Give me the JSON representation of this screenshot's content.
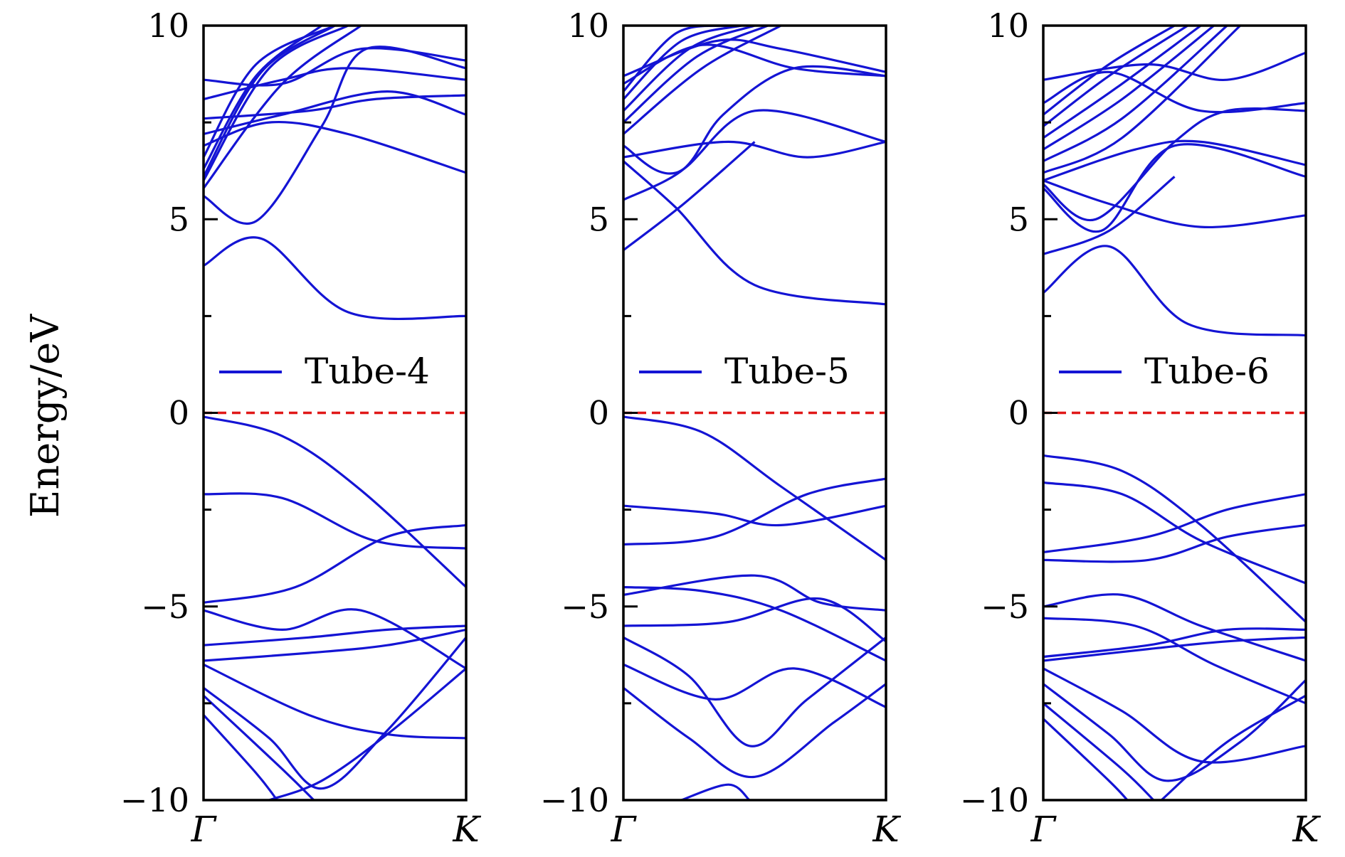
{
  "figure": {
    "ylabel": "Energy/eV"
  },
  "chart_data": [
    {
      "type": "line",
      "ylabel": "Energy/eV",
      "ylim": [
        -10,
        10
      ],
      "yticks": [
        10,
        5,
        0,
        -5,
        -10
      ],
      "ytick_labels": [
        "10",
        "5",
        "0",
        "−5",
        "−10"
      ],
      "xtick_labels": [
        "Γ",
        "K"
      ],
      "xlim": [
        0,
        1
      ],
      "fermi_level": 0,
      "legend": "Tube-4",
      "legend_position": "center",
      "colors": {
        "bands": "#1414d4",
        "fermi": "#e01818"
      },
      "bands": [
        [
          [
            0,
            8.6
          ],
          [
            0.3,
            8.5
          ],
          [
            0.6,
            9.4
          ],
          [
            1,
            9.1
          ]
        ],
        [
          [
            0,
            8.1
          ],
          [
            0.3,
            8.6
          ],
          [
            0.55,
            8.9
          ],
          [
            1,
            8.6
          ]
        ],
        [
          [
            0,
            7.6
          ],
          [
            0.4,
            7.8
          ],
          [
            0.65,
            8.1
          ],
          [
            1,
            8.2
          ]
        ],
        [
          [
            0,
            7.2
          ],
          [
            0.3,
            7.7
          ],
          [
            0.7,
            8.3
          ],
          [
            1,
            7.7
          ]
        ],
        [
          [
            0,
            6.9
          ],
          [
            0.25,
            7.5
          ],
          [
            0.55,
            7.2
          ],
          [
            1,
            6.2
          ]
        ],
        [
          [
            0,
            6.6
          ],
          [
            0.2,
            9.0
          ],
          [
            0.5,
            10.0
          ]
        ],
        [
          [
            0,
            6.3
          ],
          [
            0.2,
            8.7
          ],
          [
            0.45,
            10.0
          ]
        ],
        [
          [
            0,
            6.1
          ],
          [
            0.22,
            8.8
          ],
          [
            0.5,
            10.0
          ]
        ],
        [
          [
            0,
            6.0
          ],
          [
            0.25,
            8.9
          ],
          [
            0.55,
            10.0
          ]
        ],
        [
          [
            0,
            5.8
          ],
          [
            0.3,
            8.5
          ],
          [
            0.6,
            10.0
          ]
        ],
        [
          [
            0,
            5.6
          ],
          [
            0.2,
            4.95
          ],
          [
            0.45,
            7.4
          ],
          [
            0.62,
            9.4
          ],
          [
            1,
            8.9
          ]
        ],
        [
          [
            0,
            3.8
          ],
          [
            0.22,
            4.5
          ],
          [
            0.55,
            2.6
          ],
          [
            1,
            2.5
          ]
        ],
        [
          [
            0,
            -0.1
          ],
          [
            0.3,
            -0.6
          ],
          [
            0.6,
            -2.0
          ],
          [
            1,
            -4.5
          ]
        ],
        [
          [
            0,
            -2.1
          ],
          [
            0.3,
            -2.2
          ],
          [
            0.65,
            -3.3
          ],
          [
            1,
            -3.5
          ]
        ],
        [
          [
            0,
            -4.9
          ],
          [
            0.35,
            -4.5
          ],
          [
            0.7,
            -3.2
          ],
          [
            1,
            -2.9
          ]
        ],
        [
          [
            0,
            -5.1
          ],
          [
            0.3,
            -5.6
          ],
          [
            0.6,
            -5.1
          ],
          [
            1,
            -6.6
          ]
        ],
        [
          [
            0,
            -6.0
          ],
          [
            0.4,
            -5.8
          ],
          [
            0.7,
            -5.6
          ],
          [
            1,
            -5.5
          ]
        ],
        [
          [
            0,
            -6.4
          ],
          [
            0.4,
            -6.2
          ],
          [
            0.7,
            -6.0
          ],
          [
            1,
            -5.6
          ]
        ],
        [
          [
            0,
            -6.5
          ],
          [
            0.4,
            -7.8
          ],
          [
            0.7,
            -8.3
          ],
          [
            1,
            -8.4
          ]
        ],
        [
          [
            0,
            -7.1
          ],
          [
            0.25,
            -8.4
          ],
          [
            0.45,
            -9.7
          ],
          [
            0.7,
            -8.2
          ],
          [
            1,
            -5.8
          ]
        ],
        [
          [
            0,
            -7.3
          ],
          [
            0.3,
            -9.2
          ],
          [
            0.42,
            -10.0
          ]
        ],
        [
          [
            0,
            -7.8
          ],
          [
            0.2,
            -9.3
          ],
          [
            0.28,
            -10.0
          ]
        ],
        [
          [
            0.25,
            -10.0
          ],
          [
            0.45,
            -9.5
          ],
          [
            0.7,
            -8.3
          ],
          [
            1,
            -6.6
          ]
        ]
      ]
    },
    {
      "type": "line",
      "ylim": [
        -10,
        10
      ],
      "yticks": [
        10,
        5,
        0,
        -5,
        -10
      ],
      "ytick_labels": [
        "10",
        "5",
        "0",
        "−5",
        "−10"
      ],
      "xtick_labels": [
        "Γ",
        "K"
      ],
      "xlim": [
        0,
        1
      ],
      "fermi_level": 0,
      "legend": "Tube-5",
      "legend_position": "center",
      "colors": {
        "bands": "#1414d4",
        "fermi": "#e01818"
      },
      "bands": [
        [
          [
            0,
            8.7
          ],
          [
            0.35,
            9.6
          ],
          [
            0.6,
            9.4
          ],
          [
            1,
            8.8
          ]
        ],
        [
          [
            0,
            8.5
          ],
          [
            0.3,
            9.5
          ],
          [
            0.65,
            8.9
          ],
          [
            1,
            8.7
          ]
        ],
        [
          [
            0,
            8.3
          ],
          [
            0.2,
            9.8
          ],
          [
            0.4,
            10.0
          ]
        ],
        [
          [
            0,
            8.1
          ],
          [
            0.22,
            9.6
          ],
          [
            0.45,
            10.0
          ]
        ],
        [
          [
            0,
            7.8
          ],
          [
            0.25,
            9.4
          ],
          [
            0.5,
            10.0
          ]
        ],
        [
          [
            0,
            7.5
          ],
          [
            0.28,
            9.2
          ],
          [
            0.55,
            10.0
          ]
        ],
        [
          [
            0,
            7.2
          ],
          [
            0.3,
            8.9
          ],
          [
            0.6,
            10.0
          ]
        ],
        [
          [
            0,
            6.9
          ],
          [
            0.2,
            6.2
          ],
          [
            0.5,
            7.8
          ],
          [
            1,
            7.0
          ]
        ],
        [
          [
            0,
            6.6
          ],
          [
            0.4,
            7.0
          ],
          [
            0.7,
            6.6
          ],
          [
            1,
            7.0
          ]
        ],
        [
          [
            0,
            5.5
          ],
          [
            0.23,
            6.3
          ],
          [
            0.38,
            7.7
          ],
          [
            0.65,
            8.9
          ],
          [
            1,
            8.7
          ]
        ],
        [
          [
            0,
            6.5
          ],
          [
            0.2,
            5.3
          ],
          [
            0.5,
            3.3
          ],
          [
            1,
            2.8
          ]
        ],
        [
          [
            0,
            4.2
          ],
          [
            0.23,
            5.4
          ],
          [
            0.5,
            7.0
          ]
        ],
        [
          [
            0,
            -0.1
          ],
          [
            0.3,
            -0.5
          ],
          [
            0.6,
            -1.9
          ],
          [
            1,
            -3.8
          ]
        ],
        [
          [
            0,
            -2.4
          ],
          [
            0.35,
            -2.6
          ],
          [
            0.6,
            -2.9
          ],
          [
            1,
            -2.4
          ]
        ],
        [
          [
            0,
            -3.4
          ],
          [
            0.35,
            -3.2
          ],
          [
            0.7,
            -2.1
          ],
          [
            1,
            -1.7
          ]
        ],
        [
          [
            0,
            -4.5
          ],
          [
            0.3,
            -4.6
          ],
          [
            0.6,
            -5.1
          ],
          [
            1,
            -6.4
          ]
        ],
        [
          [
            0,
            -4.7
          ],
          [
            0.5,
            -4.2
          ],
          [
            0.75,
            -4.9
          ],
          [
            1,
            -5.1
          ]
        ],
        [
          [
            0,
            -5.5
          ],
          [
            0.4,
            -5.4
          ],
          [
            0.75,
            -4.8
          ],
          [
            1,
            -5.9
          ]
        ],
        [
          [
            0,
            -5.8
          ],
          [
            0.25,
            -6.8
          ],
          [
            0.48,
            -8.6
          ],
          [
            0.7,
            -7.4
          ],
          [
            1,
            -5.8
          ]
        ],
        [
          [
            0,
            -7.1
          ],
          [
            0.25,
            -8.4
          ],
          [
            0.5,
            -9.4
          ],
          [
            0.8,
            -8.0
          ],
          [
            1,
            -7.0
          ]
        ],
        [
          [
            0,
            -6.5
          ],
          [
            0.35,
            -7.4
          ],
          [
            0.65,
            -6.6
          ],
          [
            1,
            -7.6
          ]
        ],
        [
          [
            0.22,
            -10.0
          ],
          [
            0.4,
            -9.6
          ],
          [
            0.48,
            -10.0
          ]
        ]
      ]
    },
    {
      "type": "line",
      "ylim": [
        -10,
        10
      ],
      "yticks": [
        10,
        5,
        0,
        -5,
        -10
      ],
      "ytick_labels": [
        "10",
        "5",
        "0",
        "−5",
        "−10"
      ],
      "xtick_labels": [
        "Γ",
        "K"
      ],
      "xlim": [
        0,
        1
      ],
      "fermi_level": 0,
      "legend": "Tube-6",
      "legend_position": "center",
      "colors": {
        "bands": "#1414d4",
        "fermi": "#e01818"
      },
      "bands": [
        [
          [
            0,
            8.6
          ],
          [
            0.4,
            9.0
          ],
          [
            0.7,
            8.6
          ],
          [
            1,
            9.3
          ]
        ],
        [
          [
            0,
            8.0
          ],
          [
            0.25,
            8.8
          ],
          [
            0.6,
            7.8
          ],
          [
            1,
            8.0
          ]
        ],
        [
          [
            0,
            7.7
          ],
          [
            0.25,
            9.0
          ],
          [
            0.5,
            10.0
          ]
        ],
        [
          [
            0,
            7.4
          ],
          [
            0.25,
            8.7
          ],
          [
            0.55,
            10.0
          ]
        ],
        [
          [
            0,
            7.1
          ],
          [
            0.28,
            8.4
          ],
          [
            0.6,
            10.0
          ]
        ],
        [
          [
            0,
            6.8
          ],
          [
            0.3,
            8.1
          ],
          [
            0.65,
            10.0
          ]
        ],
        [
          [
            0,
            6.5
          ],
          [
            0.3,
            7.6
          ],
          [
            0.7,
            10.0
          ]
        ],
        [
          [
            0,
            6.2
          ],
          [
            0.3,
            7.1
          ],
          [
            0.75,
            10.0
          ]
        ],
        [
          [
            0,
            6.0
          ],
          [
            0.35,
            6.8
          ],
          [
            0.6,
            7.0
          ],
          [
            1,
            6.4
          ]
        ],
        [
          [
            0,
            6.0
          ],
          [
            0.25,
            5.4
          ],
          [
            0.6,
            4.8
          ],
          [
            1,
            5.1
          ]
        ],
        [
          [
            0,
            5.8
          ],
          [
            0.22,
            4.7
          ],
          [
            0.5,
            6.9
          ],
          [
            1,
            6.1
          ]
        ],
        [
          [
            0,
            5.9
          ],
          [
            0.2,
            5.0
          ],
          [
            0.5,
            7.0
          ],
          [
            0.7,
            7.8
          ],
          [
            1,
            7.8
          ]
        ],
        [
          [
            0,
            4.1
          ],
          [
            0.25,
            4.7
          ],
          [
            0.5,
            6.1
          ]
        ],
        [
          [
            0,
            3.1
          ],
          [
            0.25,
            4.3
          ],
          [
            0.55,
            2.3
          ],
          [
            1,
            2.0
          ]
        ],
        [
          [
            0,
            -1.1
          ],
          [
            0.3,
            -1.5
          ],
          [
            0.6,
            -2.9
          ],
          [
            1,
            -5.4
          ]
        ],
        [
          [
            0,
            -1.8
          ],
          [
            0.3,
            -2.1
          ],
          [
            0.6,
            -3.3
          ],
          [
            1,
            -4.4
          ]
        ],
        [
          [
            0,
            -3.6
          ],
          [
            0.4,
            -3.2
          ],
          [
            0.7,
            -2.5
          ],
          [
            1,
            -2.1
          ]
        ],
        [
          [
            0,
            -3.8
          ],
          [
            0.4,
            -3.8
          ],
          [
            0.7,
            -3.2
          ],
          [
            1,
            -2.9
          ]
        ],
        [
          [
            0,
            -5.0
          ],
          [
            0.3,
            -4.7
          ],
          [
            0.6,
            -5.5
          ],
          [
            1,
            -6.4
          ]
        ],
        [
          [
            0,
            -5.3
          ],
          [
            0.35,
            -5.5
          ],
          [
            0.65,
            -6.5
          ],
          [
            1,
            -7.5
          ]
        ],
        [
          [
            0,
            -6.3
          ],
          [
            0.4,
            -6.0
          ],
          [
            0.7,
            -5.6
          ],
          [
            1,
            -5.6
          ]
        ],
        [
          [
            0,
            -6.4
          ],
          [
            0.4,
            -6.1
          ],
          [
            0.7,
            -5.9
          ],
          [
            1,
            -5.8
          ]
        ],
        [
          [
            0,
            -6.6
          ],
          [
            0.3,
            -7.7
          ],
          [
            0.6,
            -9.0
          ],
          [
            1,
            -8.6
          ]
        ],
        [
          [
            0,
            -7.0
          ],
          [
            0.25,
            -8.3
          ],
          [
            0.47,
            -9.5
          ],
          [
            0.75,
            -8.5
          ],
          [
            1,
            -6.9
          ]
        ],
        [
          [
            0,
            -7.5
          ],
          [
            0.3,
            -9.2
          ],
          [
            0.42,
            -10.0
          ]
        ],
        [
          [
            0,
            -7.9
          ],
          [
            0.25,
            -9.5
          ],
          [
            0.32,
            -10.0
          ]
        ],
        [
          [
            0.45,
            -10.0
          ],
          [
            0.7,
            -8.5
          ],
          [
            1,
            -7.3
          ]
        ]
      ]
    }
  ]
}
